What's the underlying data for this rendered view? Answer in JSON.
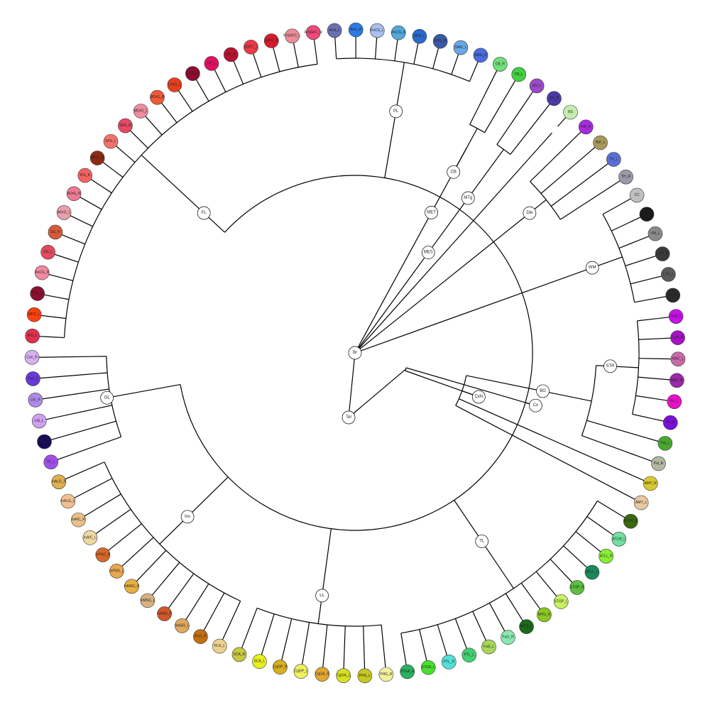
{
  "tree": {
    "root": "Br",
    "internal": [
      {
        "id": "Br",
        "parent": null
      },
      {
        "id": "Tel",
        "parent": "Br"
      },
      {
        "id": "Cx",
        "parent": "Tel"
      },
      {
        "id": "CxN",
        "parent": "Tel"
      },
      {
        "id": "FL",
        "parent": "Cx"
      },
      {
        "id": "OL",
        "parent": "Cx"
      },
      {
        "id": "Ins",
        "parent": "Cx"
      },
      {
        "id": "LL",
        "parent": "Cx"
      },
      {
        "id": "TL",
        "parent": "Cx"
      },
      {
        "id": "PL",
        "parent": "Cx"
      },
      {
        "id": "BG",
        "parent": "CxN"
      },
      {
        "id": "STR",
        "parent": "BG"
      },
      {
        "id": "MET",
        "parent": "Br"
      },
      {
        "id": "CB",
        "parent": "MET"
      },
      {
        "id": "MES",
        "parent": "Br"
      },
      {
        "id": "MTg",
        "parent": "MES"
      },
      {
        "id": "Die",
        "parent": "Br"
      },
      {
        "id": "WM",
        "parent": "Br"
      }
    ],
    "leaves": [
      {
        "id": "IFG_L",
        "label": "IFG_L",
        "color": "#e0304a",
        "parent": "FL"
      },
      {
        "id": "MFG_L",
        "label": "MFG_L",
        "color": "#ff4010",
        "parent": "FL"
      },
      {
        "id": "PrG_L",
        "label": "PrG_L",
        "color": "#8b0f2f",
        "parent": "FL"
      },
      {
        "id": "PoCG_R",
        "label": "PoCG_R",
        "color": "#f08aa0",
        "parent": "FL"
      },
      {
        "id": "SG_L",
        "label": "SG_L",
        "color": "#e44a5e",
        "parent": "FL"
      },
      {
        "id": "SG_R",
        "label": "SG_R",
        "color": "#d85a3a",
        "parent": "FL"
      },
      {
        "id": "AOrG_L",
        "label": "AOrG_L",
        "color": "#eaa0ac",
        "parent": "FL"
      },
      {
        "id": "AOrG_R",
        "label": "AOrG_R",
        "color": "#ee7a92",
        "parent": "FL"
      },
      {
        "id": "IFG_R",
        "label": "IFG_R",
        "color": "#f46262",
        "parent": "FL"
      },
      {
        "id": "MFG_R",
        "label": "MFG_R",
        "color": "#8e2a10",
        "parent": "FL"
      },
      {
        "id": "SFG_L",
        "label": "SFG_L",
        "color": "#f6726a",
        "parent": "FL"
      },
      {
        "id": "SFG_R",
        "label": "SFG_R",
        "color": "#e84862",
        "parent": "FL"
      },
      {
        "id": "MOrG_L",
        "label": "MOrG_L",
        "color": "#ee8ca0",
        "parent": "FL"
      },
      {
        "id": "MOrG_R",
        "label": "MOrG_R",
        "color": "#f05a36",
        "parent": "FL"
      },
      {
        "id": "LOrG_L",
        "label": "LOrG_L",
        "color": "#e8401c",
        "parent": "FL"
      },
      {
        "id": "LOrG_R",
        "label": "LOrG_R",
        "color": "#8e0a30",
        "parent": "FL"
      },
      {
        "id": "FP_L",
        "label": "FP_L",
        "color": "#e01060",
        "parent": "FL"
      },
      {
        "id": "FP_R",
        "label": "FP_R",
        "color": "#b81230",
        "parent": "FL"
      },
      {
        "id": "SGFC_L",
        "label": "SGFC_L",
        "color": "#ea3a46",
        "parent": "FL"
      },
      {
        "id": "SGFC_R",
        "label": "SGFC_R",
        "color": "#d81a2c",
        "parent": "FL"
      },
      {
        "id": "PrSGFC_L",
        "label": "PrSGFC_L",
        "color": "#f08c9c",
        "parent": "FL"
      },
      {
        "id": "PrSGFC_R",
        "label": "PrSGFC_R",
        "color": "#f04a7a",
        "parent": "FL"
      },
      {
        "id": "AnG_L",
        "label": "AnG_L",
        "color": "#6a70b4",
        "parent": "PL"
      },
      {
        "id": "AnG_R",
        "label": "AnG_R",
        "color": "#2a7ae8",
        "parent": "PL"
      },
      {
        "id": "PoCG_L",
        "label": "PoCG_L",
        "color": "#a8c0f0",
        "parent": "PL"
      },
      {
        "id": "PoCG_R2",
        "label": "PoCG_R",
        "color": "#52a8dc",
        "parent": "PL"
      },
      {
        "id": "SPG_L",
        "label": "SPG_L",
        "color": "#2a6ad0",
        "parent": "PL"
      },
      {
        "id": "SPG_R",
        "label": "SPG_R",
        "color": "#3a5aa8",
        "parent": "PL"
      },
      {
        "id": "SMG_L",
        "label": "SMG_L",
        "color": "#6aa8e8",
        "parent": "PL"
      },
      {
        "id": "SMG_R",
        "label": "SMG_R",
        "color": "#4a6ae0",
        "parent": "PL"
      },
      {
        "id": "CB_R",
        "label": "CB_R",
        "color": "#72e07a",
        "parent": "CB"
      },
      {
        "id": "CB_L",
        "label": "CB_L",
        "color": "#42d040",
        "parent": "CB"
      },
      {
        "id": "SN_L",
        "label": "SN_L",
        "color": "#9a4ac8",
        "parent": "MTg"
      },
      {
        "id": "SN_R",
        "label": "SN_R",
        "color": "#4a3aa8",
        "parent": "MTg"
      },
      {
        "id": "BS",
        "label": "BS",
        "color": "#c4ecb0",
        "parent": "Br"
      },
      {
        "id": "HiP_R",
        "label": "HiP_R",
        "color": "#a82ae0",
        "parent": "Die"
      },
      {
        "id": "HiP_L",
        "label": "HiP_L",
        "color": "#a8985a",
        "parent": "Die"
      },
      {
        "id": "TH_L",
        "label": "TH_L",
        "color": "#5a70d8",
        "parent": "Die"
      },
      {
        "id": "TH_R",
        "label": "TH_R",
        "color": "#9a9aa8",
        "parent": "Die"
      },
      {
        "id": "CC",
        "label": "CC",
        "color": "#c0c0c0",
        "parent": "WM"
      },
      {
        "id": "IC_R",
        "label": "IC_R",
        "color": "#1a1a1a",
        "parent": "WM"
      },
      {
        "id": "VM_L",
        "label": "VM_L",
        "color": "#8a8a8a",
        "parent": "WM"
      },
      {
        "id": "LTH_R",
        "label": "LTH_R",
        "color": "#3a3a3a",
        "parent": "WM"
      },
      {
        "id": "LTH_L",
        "label": "LTH_L",
        "color": "#5a5a5a",
        "parent": "WM"
      },
      {
        "id": "IC_L",
        "label": "IC_L",
        "color": "#2a2a2a",
        "parent": "WM"
      },
      {
        "id": "CaN_L",
        "label": "CaN_L",
        "color": "#c810e8",
        "parent": "STR"
      },
      {
        "id": "CaN_R",
        "label": "CaN_R",
        "color": "#a810c8",
        "parent": "STR"
      },
      {
        "id": "NAC_L",
        "label": "NAC_L",
        "color": "#c86aa8",
        "parent": "STR"
      },
      {
        "id": "NAC_R",
        "label": "NAC_R",
        "color": "#9a2aa8",
        "parent": "STR"
      },
      {
        "id": "Pu_L",
        "label": "Pu_L",
        "color": "#e810c8",
        "parent": "STR"
      },
      {
        "id": "Pu_R",
        "label": "Pu_R",
        "color": "#7a10d8",
        "parent": "STR"
      },
      {
        "id": "Pal_L",
        "label": "Pal_L",
        "color": "#4aa830",
        "parent": "BG"
      },
      {
        "id": "Pal_R",
        "label": "Pal_R",
        "color": "#b0b8a0",
        "parent": "BG"
      },
      {
        "id": "AMY_R",
        "label": "AMY_R",
        "color": "#d8c830",
        "parent": "CxN"
      },
      {
        "id": "AMY_L",
        "label": "AMY_L",
        "color": "#e8c8a0",
        "parent": "CxN"
      },
      {
        "id": "ATLM_R",
        "label": "ATLM_R",
        "color": "#3a6a10",
        "parent": "TL"
      },
      {
        "id": "ATLM_L",
        "label": "ATLM_L",
        "color": "#72e0a0",
        "parent": "TL"
      },
      {
        "id": "ATLL_R",
        "label": "ATLL_R",
        "color": "#88f030",
        "parent": "TL"
      },
      {
        "id": "ATLL_L",
        "label": "ATLL_L",
        "color": "#1a8a5a",
        "parent": "TL"
      },
      {
        "id": "STGP_R",
        "label": "STGP_R",
        "color": "#5ac040",
        "parent": "TL"
      },
      {
        "id": "STGP_L",
        "label": "STGP_L",
        "color": "#c8f060",
        "parent": "TL"
      },
      {
        "id": "MTG_R",
        "label": "MTG_R",
        "color": "#8ac820",
        "parent": "TL"
      },
      {
        "id": "MTG_L",
        "label": "MTG_L",
        "color": "#1a6a1a",
        "parent": "TL"
      },
      {
        "id": "FuG_R",
        "label": "FuG_R",
        "color": "#8ae8b0",
        "parent": "TL"
      },
      {
        "id": "FuG_L",
        "label": "FuG_L",
        "color": "#a8d85a",
        "parent": "TL"
      },
      {
        "id": "PTL_L",
        "label": "PTL_L",
        "color": "#42d070",
        "parent": "TL"
      },
      {
        "id": "PTL_R",
        "label": "PTL_R",
        "color": "#52e0d8",
        "parent": "TL"
      },
      {
        "id": "STGA_L",
        "label": "STGA_L",
        "color": "#48e030",
        "parent": "TL"
      },
      {
        "id": "STGA_R",
        "label": "STGA_R",
        "color": "#2ab060",
        "parent": "TL"
      },
      {
        "id": "PHG_R",
        "label": "PHG_R",
        "color": "#f0f0a0",
        "parent": "LL"
      },
      {
        "id": "PHG_L",
        "label": "PHG_L",
        "color": "#c8c820",
        "parent": "LL"
      },
      {
        "id": "CgGA_L",
        "label": "CgGA_L",
        "color": "#d8e020",
        "parent": "LL"
      },
      {
        "id": "CgGA_R",
        "label": "CgGA_R",
        "color": "#e0a830",
        "parent": "LL"
      },
      {
        "id": "CgGP_L",
        "label": "CgGP_L",
        "color": "#f0f060",
        "parent": "LL"
      },
      {
        "id": "CgGP_R",
        "label": "CgGP_R",
        "color": "#d8b020",
        "parent": "LL"
      },
      {
        "id": "SCA_L",
        "label": "SCA_L",
        "color": "#e8f020",
        "parent": "LL"
      },
      {
        "id": "SCA_R",
        "label": "SCA_R",
        "color": "#c8c840",
        "parent": "LL"
      },
      {
        "id": "PLG_L",
        "label": "PLG_L",
        "color": "#f0d090",
        "parent": "Ins"
      },
      {
        "id": "PLG_R",
        "label": "PLG_R",
        "color": "#c07010",
        "parent": "Ins"
      },
      {
        "id": "InASG_L",
        "label": "InASG_L",
        "color": "#e0a860",
        "parent": "Ins"
      },
      {
        "id": "InASG_R",
        "label": "InASG_R",
        "color": "#d0582a",
        "parent": "Ins"
      },
      {
        "id": "InMSG_L",
        "label": "InMSG_L",
        "color": "#d8b080",
        "parent": "Ins"
      },
      {
        "id": "InMSG_R",
        "label": "InMSG_R",
        "color": "#e8b040",
        "parent": "Ins"
      },
      {
        "id": "InPSG_L",
        "label": "InPSG_L",
        "color": "#e8a850",
        "parent": "Ins"
      },
      {
        "id": "InPSG_R",
        "label": "InPSG_R",
        "color": "#d8682a",
        "parent": "Ins"
      },
      {
        "id": "InAIC_L",
        "label": "InAIC_L",
        "color": "#f0d8a0",
        "parent": "Ins"
      },
      {
        "id": "InAIC_R",
        "label": "InAIC_R",
        "color": "#e8c088",
        "parent": "Ins"
      },
      {
        "id": "InALG_L",
        "label": "InALG_L",
        "color": "#f0c090",
        "parent": "Ins"
      },
      {
        "id": "InALG_R",
        "label": "InALG_R",
        "color": "#e0b050",
        "parent": "Ins"
      },
      {
        "id": "OL_L",
        "label": "OL_L",
        "color": "#a050e8",
        "parent": "OL"
      },
      {
        "id": "OL_R",
        "label": "OL_R",
        "color": "#1a0a5a",
        "parent": "OL"
      },
      {
        "id": "LiG_L",
        "label": "LiG_L",
        "color": "#d0a0f0",
        "parent": "OL"
      },
      {
        "id": "LiG_R",
        "label": "LiG_R",
        "color": "#b08ae8",
        "parent": "OL"
      },
      {
        "id": "Cun_L",
        "label": "Cun_L",
        "color": "#6a3ad8",
        "parent": "OL"
      },
      {
        "id": "Cun_R",
        "label": "Cun_R",
        "color": "#d8b0f0",
        "parent": "OL"
      }
    ]
  }
}
